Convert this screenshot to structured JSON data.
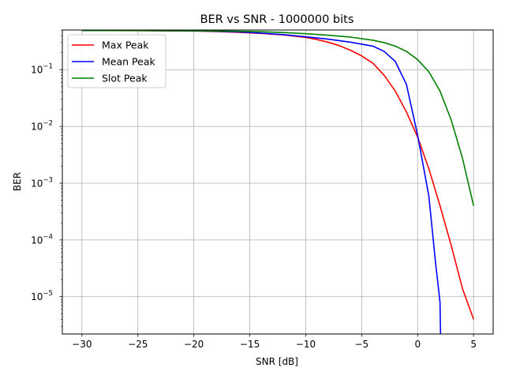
{
  "chart_data": {
    "type": "line",
    "title": "BER vs SNR - 1000000 bits",
    "xlabel": "SNR [dB]",
    "ylabel": "BER",
    "xlim": [
      -31.75,
      6.75
    ],
    "ylim": [
      2.2e-06,
      0.5
    ],
    "yscale": "log",
    "grid": true,
    "legend_position": "top-left",
    "xticks": [
      -30,
      -25,
      -20,
      -15,
      -10,
      -5,
      0,
      5
    ],
    "xtick_labels": [
      "−30",
      "−25",
      "−20",
      "−15",
      "−10",
      "−5",
      "0",
      "5"
    ],
    "yticks": [
      {
        "value": 1e-05,
        "base": "10",
        "exp": "−5"
      },
      {
        "value": 0.0001,
        "base": "10",
        "exp": "−4"
      },
      {
        "value": 0.001,
        "base": "10",
        "exp": "−3"
      },
      {
        "value": 0.01,
        "base": "10",
        "exp": "−2"
      },
      {
        "value": 0.1,
        "base": "10",
        "exp": "−1"
      }
    ],
    "series": [
      {
        "name": "Max Peak",
        "color": "#ff0000",
        "x": [
          -30,
          -25,
          -20,
          -18,
          -16,
          -14,
          -12,
          -10,
          -9,
          -8,
          -7,
          -6,
          -5,
          -4,
          -3,
          -2,
          -1,
          0,
          1,
          2,
          3,
          4,
          5
        ],
        "y": [
          0.49,
          0.487,
          0.48,
          0.47,
          0.455,
          0.435,
          0.41,
          0.37,
          0.34,
          0.305,
          0.265,
          0.22,
          0.175,
          0.13,
          0.08,
          0.042,
          0.018,
          0.0065,
          0.0018,
          0.0004,
          8e-05,
          1.4e-05,
          4e-06
        ]
      },
      {
        "name": "Mean Peak",
        "color": "#0000ff",
        "x": [
          -30,
          -25,
          -20,
          -18,
          -16,
          -14,
          -12,
          -10,
          -8,
          -6,
          -4,
          -3,
          -2,
          -1,
          0,
          1,
          1.6,
          2,
          2.05
        ],
        "y": [
          0.49,
          0.488,
          0.483,
          0.475,
          0.462,
          0.44,
          0.415,
          0.38,
          0.345,
          0.305,
          0.26,
          0.21,
          0.14,
          0.055,
          0.007,
          0.0006,
          4e-05,
          8e-06,
          2e-06
        ]
      },
      {
        "name": "Slot Peak",
        "color": "#008000",
        "x": [
          -30,
          -25,
          -20,
          -18,
          -16,
          -14,
          -12,
          -10,
          -8,
          -6,
          -4,
          -3,
          -2,
          -1,
          0,
          1,
          2,
          3,
          4,
          5
        ],
        "y": [
          0.49,
          0.489,
          0.486,
          0.482,
          0.476,
          0.466,
          0.452,
          0.43,
          0.405,
          0.375,
          0.33,
          0.3,
          0.26,
          0.21,
          0.15,
          0.092,
          0.042,
          0.013,
          0.0028,
          0.0004
        ]
      }
    ]
  }
}
